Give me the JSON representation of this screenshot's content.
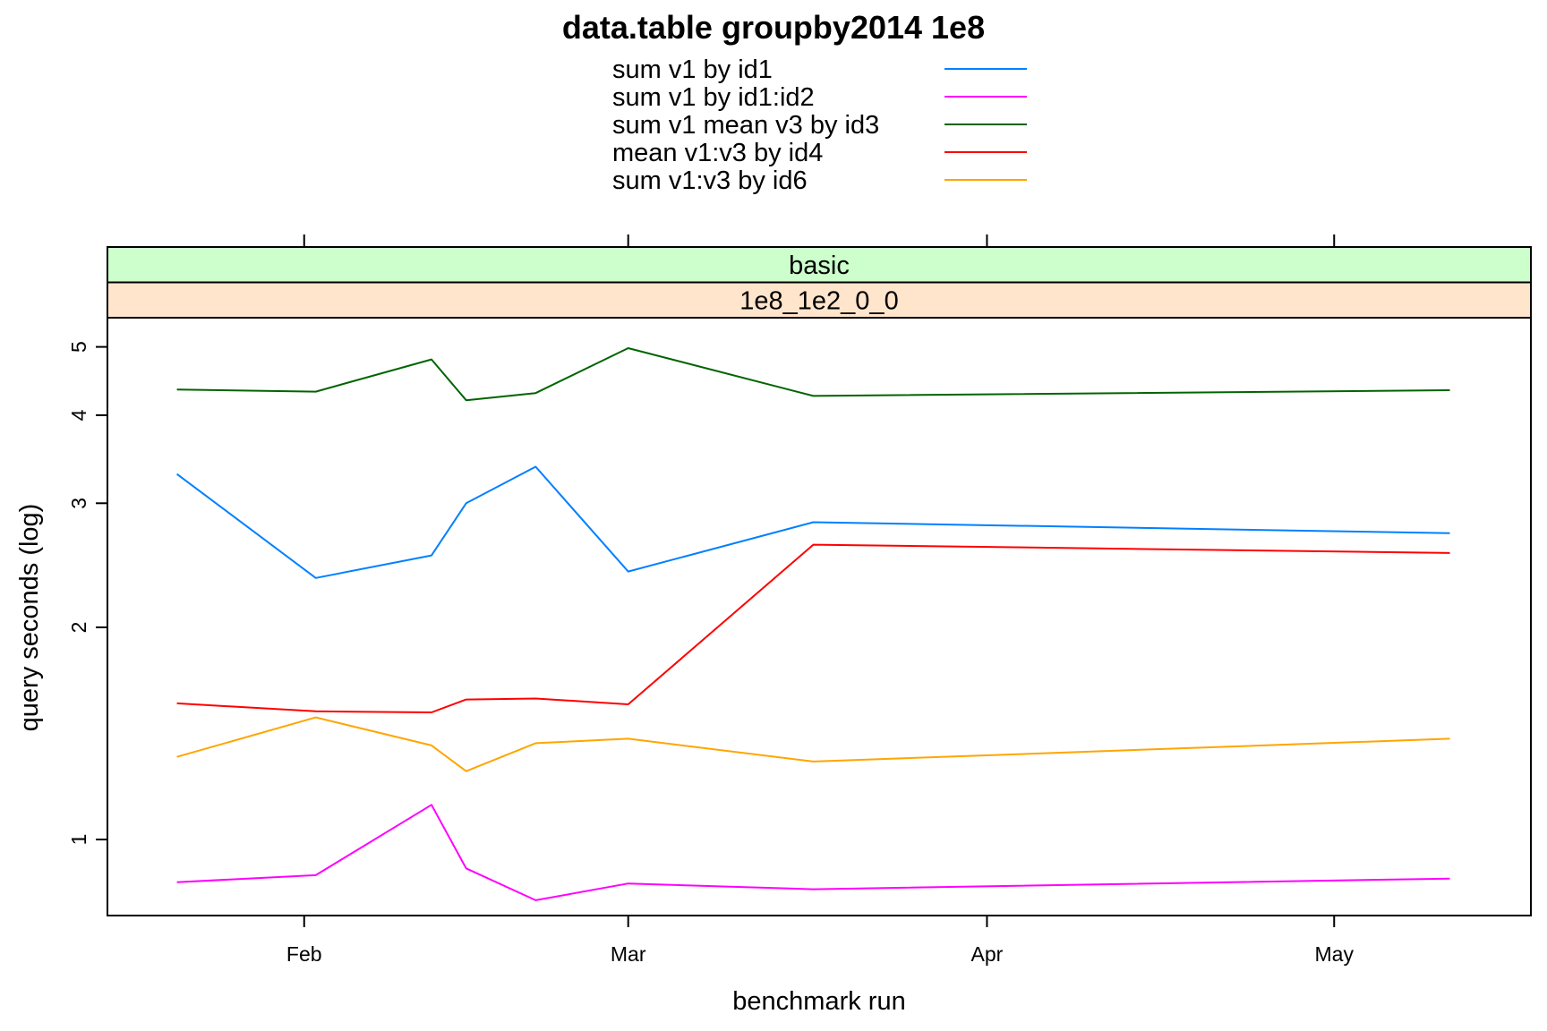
{
  "chart_data": {
    "type": "line",
    "title": "data.table groupby2014 1e8",
    "xlabel": "benchmark run",
    "ylabel": "query seconds (log)",
    "y_scale": "log",
    "ylim": [
      0.78,
      5.5
    ],
    "xlim": [
      "2019-01-15",
      "2019-05-18"
    ],
    "y_ticks": [
      1,
      2,
      3,
      4,
      5
    ],
    "x_ticks": [
      {
        "label": "Feb",
        "date": "2019-02-01"
      },
      {
        "label": "Mar",
        "date": "2019-03-01"
      },
      {
        "label": "Apr",
        "date": "2019-04-01"
      },
      {
        "label": "May",
        "date": "2019-05-01"
      }
    ],
    "strips": [
      "basic",
      "1e8_1e2_0_0"
    ],
    "strip_colors": [
      "#ccffcc",
      "#ffe5cc"
    ],
    "legend_position": "top",
    "x": [
      "2019-01-21",
      "2019-02-02",
      "2019-02-12",
      "2019-02-15",
      "2019-02-21",
      "2019-03-01",
      "2019-03-17",
      "2019-05-11"
    ],
    "series": [
      {
        "name": "sum v1 by id1",
        "color": "#0080ff",
        "values": [
          3.3,
          2.35,
          2.53,
          3.0,
          3.38,
          2.4,
          2.82,
          2.72
        ]
      },
      {
        "name": "sum v1 by id1:id2",
        "color": "#ff00ff",
        "values": [
          0.87,
          0.89,
          1.12,
          0.91,
          0.82,
          0.866,
          0.85,
          0.88
        ]
      },
      {
        "name": "sum v1 mean v3 by id3",
        "color": "#006400",
        "values": [
          4.35,
          4.32,
          4.8,
          4.2,
          4.3,
          4.98,
          4.26,
          4.34
        ]
      },
      {
        "name": "mean v1:v3 by id4",
        "color": "#ff0000",
        "values": [
          1.56,
          1.52,
          1.515,
          1.58,
          1.585,
          1.555,
          2.62,
          2.55
        ]
      },
      {
        "name": "sum v1:v3 by id6",
        "color": "#ffa500",
        "values": [
          1.31,
          1.49,
          1.36,
          1.25,
          1.37,
          1.39,
          1.29,
          1.39
        ]
      }
    ]
  }
}
